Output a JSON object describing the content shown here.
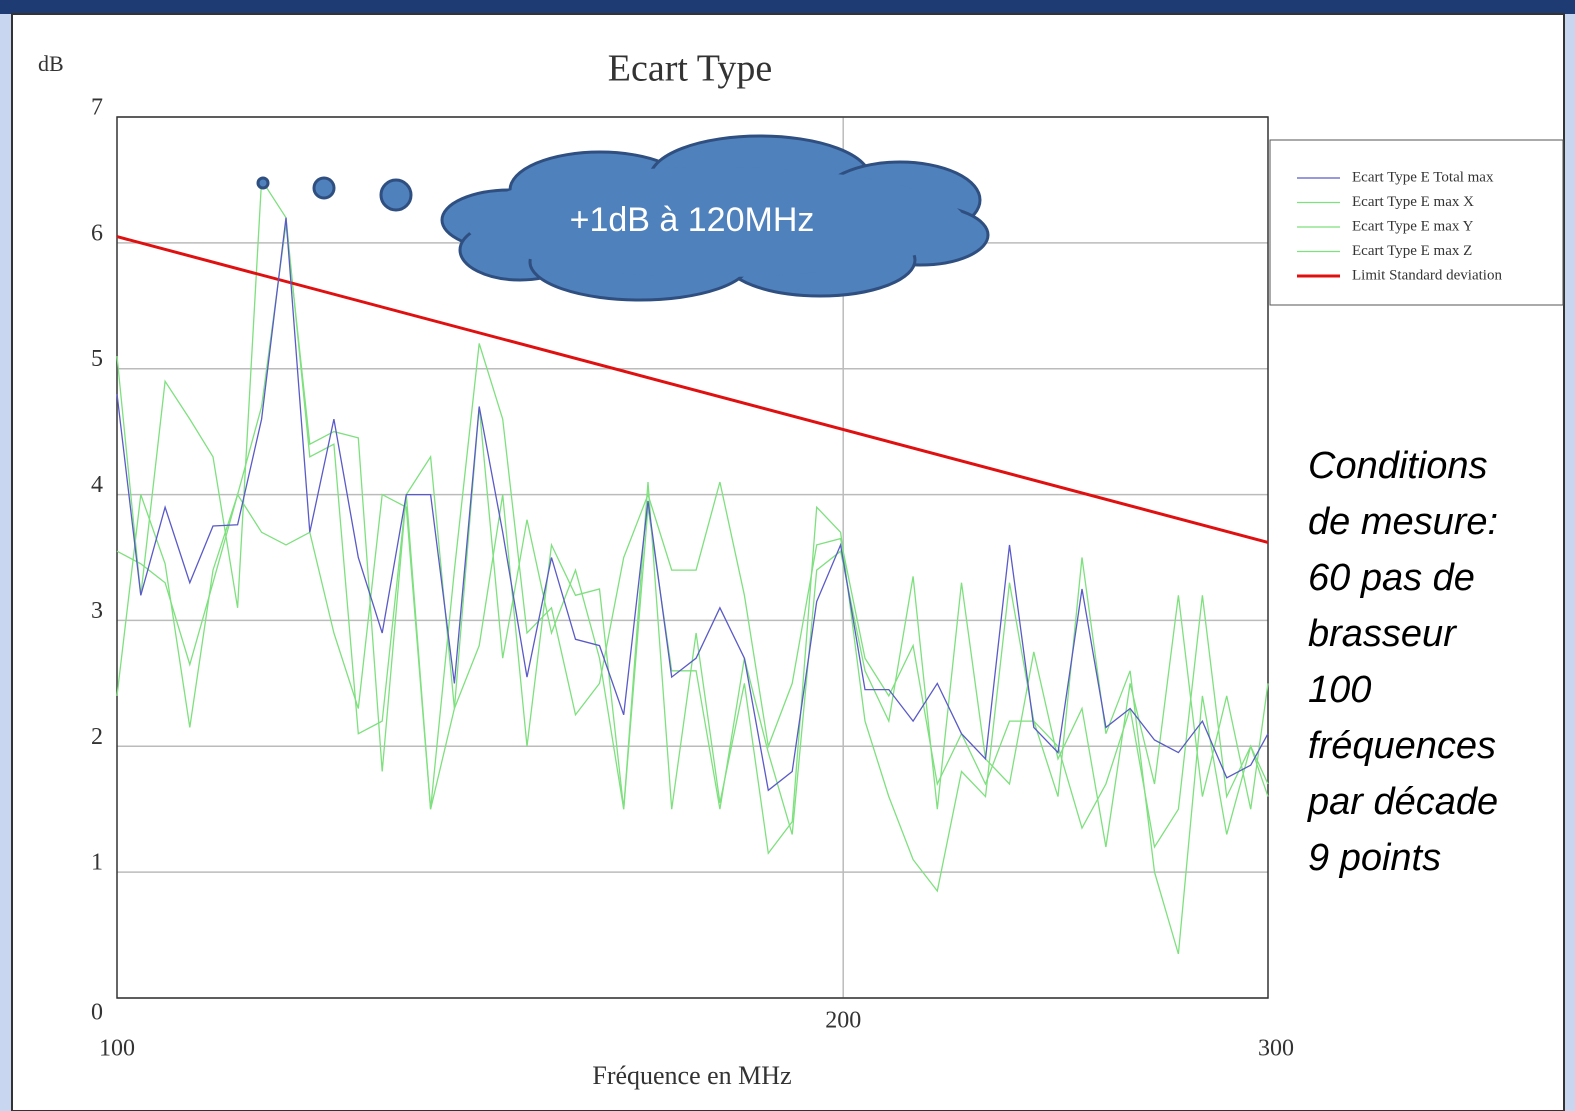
{
  "chart_data": {
    "type": "line",
    "title": "Ecart Type",
    "y_label": "dB",
    "x_label": "Fréquence en MHz",
    "annotation": "+1dB à 120MHz",
    "side_note": [
      "Conditions",
      "de mesure:",
      "60 pas de",
      "brasseur",
      "100",
      "fréquences",
      "par décade",
      "9 points"
    ],
    "xscale": "log",
    "grid": true,
    "legend": "right",
    "xlim": [
      100,
      300
    ],
    "xticks": [
      100,
      200,
      300
    ],
    "ylim": [
      0,
      7
    ],
    "yticks": [
      0,
      1,
      2,
      3,
      4,
      5,
      6,
      7
    ],
    "x": [
      100,
      102.3,
      104.7,
      107.2,
      109.6,
      112.2,
      114.8,
      117.5,
      120.2,
      123.0,
      125.9,
      128.8,
      131.8,
      134.9,
      138.0,
      141.3,
      144.5,
      147.9,
      151.4,
      154.9,
      158.5,
      162.2,
      166.0,
      169.8,
      173.8,
      177.8,
      182.0,
      186.2,
      190.5,
      195.0,
      199.5,
      204.2,
      208.9,
      213.8,
      218.8,
      223.9,
      229.1,
      234.4,
      239.9,
      245.5,
      251.2,
      257.0,
      263.0,
      269.2,
      275.4,
      281.8,
      288.4,
      295.1,
      300
    ],
    "series": [
      {
        "name": "Ecart Type E Total max",
        "color": "#5a5ac8",
        "width": 1.3,
        "values": [
          4.8,
          3.2,
          3.9,
          3.3,
          3.75,
          3.76,
          4.6,
          6.2,
          3.7,
          4.6,
          3.5,
          2.9,
          4.0,
          4.0,
          2.5,
          4.7,
          3.7,
          2.55,
          3.5,
          2.85,
          2.8,
          2.25,
          3.95,
          2.55,
          2.7,
          3.1,
          2.7,
          1.65,
          1.8,
          3.15,
          3.6,
          2.45,
          2.45,
          2.2,
          2.5,
          2.1,
          1.9,
          3.6,
          2.15,
          1.95,
          3.25,
          2.15,
          2.3,
          2.05,
          1.95,
          2.2,
          1.75,
          1.85,
          2.1
        ]
      },
      {
        "name": "Ecart Type E max X",
        "color": "#7ee07e",
        "width": 1.3,
        "values": [
          5.1,
          3.2,
          4.9,
          4.6,
          4.3,
          3.1,
          6.5,
          6.2,
          4.3,
          4.4,
          2.1,
          2.2,
          4.0,
          4.3,
          2.3,
          2.8,
          4.0,
          2.0,
          3.6,
          3.2,
          3.25,
          1.5,
          4.1,
          1.5,
          2.9,
          1.55,
          2.5,
          1.15,
          1.4,
          3.9,
          3.7,
          2.2,
          1.6,
          1.1,
          0.85,
          1.8,
          1.6,
          3.3,
          2.2,
          1.6,
          3.5,
          2.1,
          2.6,
          1.0,
          0.35,
          2.4,
          1.3,
          2.0,
          1.7
        ]
      },
      {
        "name": "Ecart Type E max Y",
        "color": "#7ee07e",
        "width": 1.3,
        "values": [
          3.55,
          3.45,
          3.3,
          2.65,
          3.3,
          4.0,
          4.7,
          6.15,
          4.4,
          4.5,
          4.45,
          1.8,
          4.0,
          1.5,
          3.4,
          5.2,
          4.6,
          2.9,
          3.1,
          2.25,
          2.5,
          3.5,
          4.0,
          3.4,
          3.4,
          4.1,
          3.2,
          2.0,
          2.5,
          3.6,
          3.65,
          2.7,
          2.4,
          2.8,
          1.7,
          2.1,
          1.7,
          2.2,
          2.2,
          2.0,
          1.35,
          1.7,
          2.3,
          1.2,
          1.5,
          3.2,
          1.6,
          2.0,
          1.6
        ]
      },
      {
        "name": "Ecart Type E max Z",
        "color": "#7ee07e",
        "width": 1.3,
        "values": [
          2.4,
          4.0,
          3.45,
          2.15,
          3.4,
          4.0,
          3.7,
          3.6,
          3.7,
          2.9,
          2.3,
          4.0,
          3.9,
          1.5,
          2.3,
          4.7,
          2.7,
          3.8,
          2.9,
          3.4,
          2.7,
          1.5,
          3.9,
          2.6,
          2.6,
          1.5,
          2.7,
          1.95,
          1.3,
          3.4,
          3.55,
          2.6,
          2.2,
          3.35,
          1.5,
          3.3,
          1.9,
          1.7,
          2.75,
          1.9,
          2.3,
          1.2,
          2.5,
          1.7,
          3.2,
          1.6,
          2.4,
          1.5,
          2.5
        ]
      },
      {
        "name": "Limit Standard deviation",
        "color": "#e01010",
        "width": 3,
        "x": [
          100,
          300
        ],
        "values": [
          6.05,
          3.62
        ]
      }
    ]
  }
}
